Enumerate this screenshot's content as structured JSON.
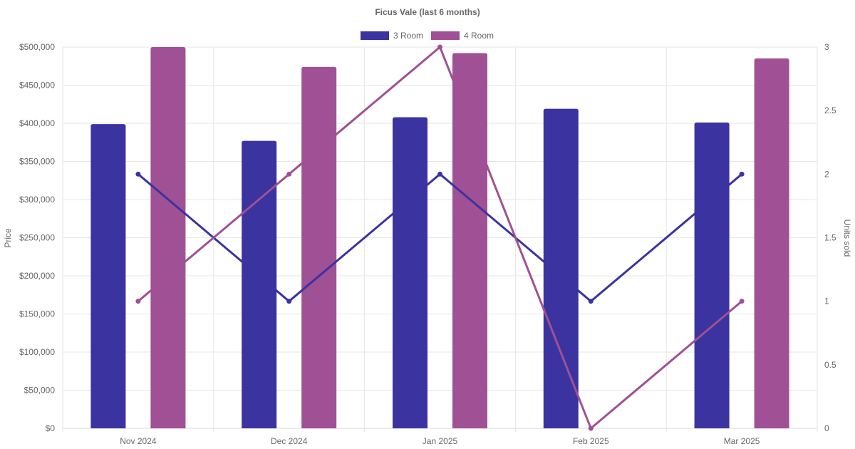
{
  "chart_data": {
    "type": "bar",
    "title": "Ficus Vale (last 6 months)",
    "categories": [
      "Nov 2024",
      "Dec 2024",
      "Jan 2025",
      "Feb 2025",
      "Mar 2025"
    ],
    "price_axis": {
      "label": "Price",
      "ylim": [
        0,
        500000
      ],
      "ticks": [
        "$0",
        "$50,000",
        "$100,000",
        "$150,000",
        "$200,000",
        "$250,000",
        "$300,000",
        "$350,000",
        "$400,000",
        "$450,000",
        "$500,000"
      ]
    },
    "units_axis": {
      "label": "Units sold",
      "ylim": [
        0,
        3
      ],
      "ticks": [
        "0",
        "0.5",
        "1",
        "1.5",
        "2",
        "2.5",
        "3"
      ]
    },
    "series": [
      {
        "name": "3 Room",
        "color": "#3a33a0",
        "price": [
          399000,
          377000,
          408000,
          419000,
          401000
        ],
        "units_sold": [
          2,
          1,
          2,
          1,
          2
        ]
      },
      {
        "name": "4 Room",
        "color": "#a05094",
        "price": [
          500000,
          474000,
          492000,
          null,
          485000
        ],
        "units_sold": [
          1,
          2,
          3,
          0,
          1
        ]
      }
    ],
    "legend_position": "top-center",
    "grid": true
  }
}
